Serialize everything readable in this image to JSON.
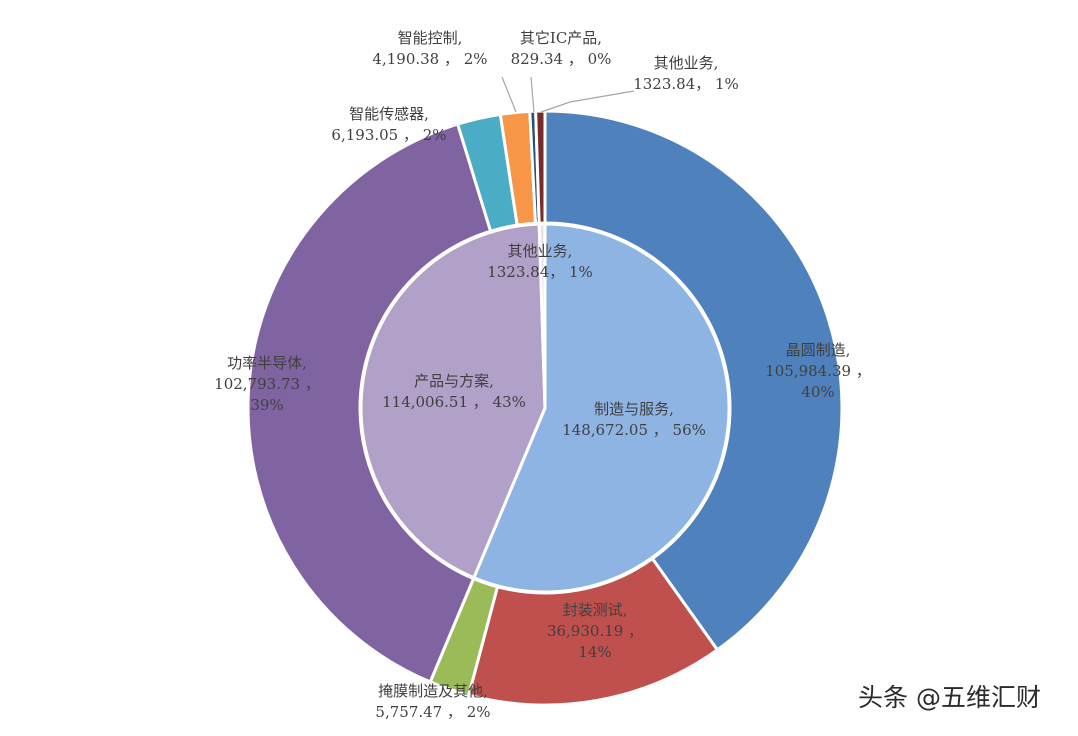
{
  "chart_data": {
    "type": "pie",
    "title": "",
    "series": [
      {
        "name": "",
        "slices": [
          {
            "label": "制造与服务,",
            "value_text": "148,672.05 ， 56%",
            "value": 148672.05,
            "percent": 56,
            "color": "#8eb4e3"
          },
          {
            "label": "产品与方案,",
            "value_text": "114,006.51 ， 43%",
            "value": 114006.51,
            "percent": 43,
            "color": "#b1a0c7"
          },
          {
            "label": "其他业务,",
            "value_text": "1323.84， 1%",
            "value": 1323.84,
            "percent": 1,
            "color": "#e6e0ec"
          }
        ]
      },
      {
        "name": "",
        "slices": [
          {
            "label": "晶圆制造,",
            "value_text": "105,984.39 ，",
            "value_text2": "40%",
            "value": 105984.39,
            "percent": 40,
            "color": "#4f81bd"
          },
          {
            "label": "封装测试,",
            "value_text": "36,930.19 ，",
            "value_text2": "14%",
            "value": 36930.19,
            "percent": 14,
            "color": "#c0504d"
          },
          {
            "label": "掩膜制造及其他,",
            "value_text": "5,757.47 ， 2%",
            "value": 5757.47,
            "percent": 2,
            "color": "#9bbb59"
          },
          {
            "label": "功率半导体,",
            "value_text": "102,793.73 ，",
            "value_text2": "39%",
            "value": 102793.73,
            "percent": 39,
            "color": "#8064a2"
          },
          {
            "label": "智能传感器,",
            "value_text": "6,193.05 ， 2%",
            "value": 6193.05,
            "percent": 2,
            "color": "#4bacc6"
          },
          {
            "label": "智能控制,",
            "value_text": "4,190.38 ， 2%",
            "value": 4190.38,
            "percent": 2,
            "color": "#f79646"
          },
          {
            "label": "其它IC产品,",
            "value_text": "829.34 ， 0%",
            "value": 829.34,
            "percent": 0,
            "color": "#2c4d75"
          },
          {
            "label": "其他业务,",
            "value_text": "1323.84， 1%",
            "value": 1323.84,
            "percent": 1,
            "color": "#772c2a"
          }
        ]
      }
    ]
  },
  "watermark": "头条 @五维汇财"
}
